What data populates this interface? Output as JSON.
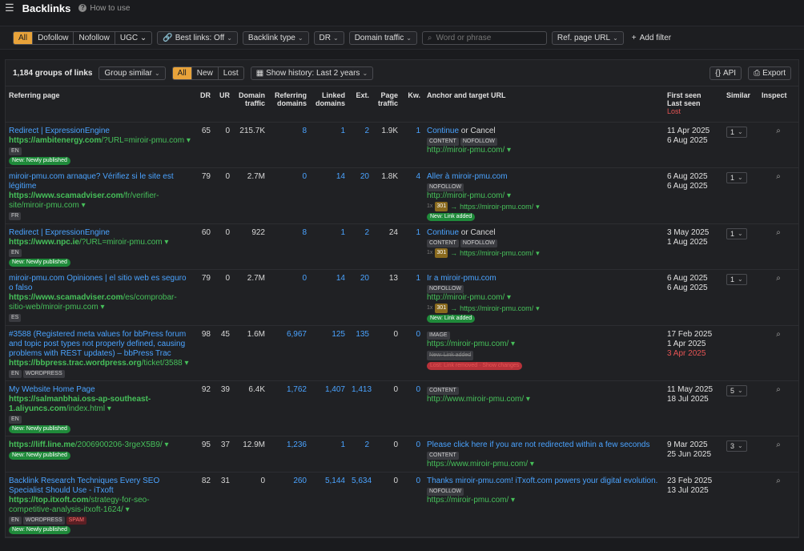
{
  "header": {
    "title": "Backlinks",
    "howto": "How to use"
  },
  "filters": {
    "seg": [
      "All",
      "Dofollow",
      "Nofollow",
      "UGC"
    ],
    "best_links": "Best links: Off",
    "backlink_type": "Backlink type",
    "dr": "DR",
    "domain_traffic": "Domain traffic",
    "search_placeholder": "Word or phrase",
    "ref_page_url": "Ref. page URL",
    "add_filter": "Add filter"
  },
  "toolbar": {
    "count": "1,184 groups of links",
    "group_similar": "Group similar",
    "tabs": [
      "All",
      "New",
      "Lost"
    ],
    "history": "Show history: Last 2 years",
    "api": "API",
    "export": "Export"
  },
  "columns": {
    "referring_page": "Referring page",
    "dr": "DR",
    "ur": "UR",
    "domain_traffic": "Domain traffic",
    "referring_domains": "Referring domains",
    "linked_domains": "Linked domains",
    "ext": "Ext.",
    "page_traffic": "Page traffic",
    "kw": "Kw.",
    "anchor": "Anchor and target URL",
    "first_seen": "First seen",
    "last_seen": "Last seen",
    "lost": "Lost",
    "similar": "Similar",
    "inspect": "Inspect"
  },
  "rows": [
    {
      "title": "Redirect | ExpressionEngine",
      "url_domain": "https://ambitenergy.com",
      "url_path": "/?URL=miroir-pmu.com",
      "tags": [
        "EN"
      ],
      "status": "New: Newly published",
      "dr": "65",
      "ur": "0",
      "dtraffic": "215.7K",
      "refdom": "8",
      "linked": "1",
      "ext": "2",
      "ptraffic": "1.9K",
      "kw": "1",
      "anchor": "Continue",
      "anchor_rest": " or Cancel",
      "anchor_tags": [
        "CONTENT",
        "NOFOLLOW"
      ],
      "target": "http://miroir-pmu.com/",
      "redirect": "",
      "link_status": "",
      "first": "11 Apr 2025",
      "last": "6 Aug 2025",
      "lost": "",
      "similar": "1"
    },
    {
      "title": "miroir-pmu.com arnaque? Vérifiez si le site est légitime",
      "url_domain": "https://www.scamadviser.com",
      "url_path": "/fr/verifier-site/miroir-pmu.com",
      "tags": [
        "FR"
      ],
      "status": "",
      "dr": "79",
      "ur": "0",
      "dtraffic": "2.7M",
      "refdom": "0",
      "linked": "14",
      "ext": "20",
      "ptraffic": "1.8K",
      "kw": "4",
      "anchor": "Aller à miroir-pmu.com",
      "anchor_rest": "",
      "anchor_tags": [
        "NOFOLLOW"
      ],
      "target": "http://miroir-pmu.com/",
      "redirect": "https://miroir-pmu.com/",
      "link_status": "New: Link added",
      "first": "6 Aug 2025",
      "last": "6 Aug 2025",
      "lost": "",
      "similar": "1"
    },
    {
      "title": "Redirect | ExpressionEngine",
      "url_domain": "https://www.npc.ie",
      "url_path": "/?URL=miroir-pmu.com",
      "tags": [
        "EN"
      ],
      "status": "New: Newly published",
      "dr": "60",
      "ur": "0",
      "dtraffic": "922",
      "refdom": "8",
      "linked": "1",
      "ext": "2",
      "ptraffic": "24",
      "kw": "1",
      "anchor": "Continue",
      "anchor_rest": " or Cancel",
      "anchor_tags": [
        "CONTENT",
        "NOFOLLOW"
      ],
      "target": "",
      "redirect": "https://miroir-pmu.com/",
      "link_status": "",
      "first": "3 May 2025",
      "last": "1 Aug 2025",
      "lost": "",
      "similar": "1"
    },
    {
      "title": "miroir-pmu.com Opiniones | el sitio web es seguro o falso",
      "url_domain": "https://www.scamadviser.com",
      "url_path": "/es/comprobar-sitio-web/miroir-pmu.com",
      "tags": [
        "ES"
      ],
      "status": "",
      "dr": "79",
      "ur": "0",
      "dtraffic": "2.7M",
      "refdom": "0",
      "linked": "14",
      "ext": "20",
      "ptraffic": "13",
      "kw": "1",
      "anchor": "Ir a miroir-pmu.com",
      "anchor_rest": "",
      "anchor_tags": [
        "NOFOLLOW"
      ],
      "target": "http://miroir-pmu.com/",
      "redirect": "https://miroir-pmu.com/",
      "link_status": "New: Link added",
      "first": "6 Aug 2025",
      "last": "6 Aug 2025",
      "lost": "",
      "similar": "1"
    },
    {
      "title": "#3588 (Registered meta values for bbPress forum and topic post types not properly defined, causing problems with REST updates) – bbPress Trac",
      "url_domain": "https://bbpress.trac.wordpress.org",
      "url_path": "/ticket/3588",
      "tags": [
        "EN",
        "WORDPRESS"
      ],
      "status": "",
      "dr": "98",
      "ur": "45",
      "dtraffic": "1.6M",
      "refdom": "6,967",
      "linked": "125",
      "ext": "135",
      "ptraffic": "0",
      "kw": "0",
      "anchor": "",
      "anchor_rest": "",
      "anchor_tags": [
        "IMAGE"
      ],
      "target": "https://miroir-pmu.com/",
      "redirect": "",
      "link_status": "",
      "strike": "New: Link added",
      "lost_status": "Lost: Link removed · Show changes",
      "first": "17 Feb 2025",
      "last": "1 Apr 2025",
      "lost": "3 Apr 2025",
      "similar": ""
    },
    {
      "title": "My Website Home Page",
      "url_domain": "https://salmanbhai.oss-ap-southeast-1.aliyuncs.com",
      "url_path": "/index.html",
      "tags": [
        "EN"
      ],
      "status": "New: Newly published",
      "dr": "92",
      "ur": "39",
      "dtraffic": "6.4K",
      "refdom": "1,762",
      "linked": "1,407",
      "ext": "1,413",
      "ptraffic": "0",
      "kw": "0",
      "anchor": "",
      "anchor_rest": "",
      "anchor_tags": [
        "CONTENT"
      ],
      "target": "http://www.miroir-pmu.com/",
      "redirect": "",
      "link_status": "",
      "first": "11 May 2025",
      "last": "18 Jul 2025",
      "lost": "",
      "similar": "5"
    },
    {
      "title": "",
      "url_domain": "https://liff.line.me",
      "url_path": "/2006900206-3rgeX5B9/",
      "tags": [],
      "status": "New: Newly published",
      "dr": "95",
      "ur": "37",
      "dtraffic": "12.9M",
      "refdom": "1,236",
      "linked": "1",
      "ext": "2",
      "ptraffic": "0",
      "kw": "0",
      "anchor": "Please click here if you are not redirected within a few seconds",
      "anchor_rest": "",
      "anchor_tags": [
        "CONTENT"
      ],
      "target": "https://www.miroir-pmu.com/",
      "redirect": "",
      "link_status": "",
      "first": "9 Mar 2025",
      "last": "25 Jun 2025",
      "lost": "",
      "similar": "3"
    },
    {
      "title": "Backlink Research Techniques Every SEO Specialist Should Use - iTxoft",
      "url_domain": "https://top.itxoft.com",
      "url_path": "/strategy-for-seo-competitive-analysis-itxoft-1624/",
      "tags": [
        "EN",
        "WORDPRESS",
        "SPAM"
      ],
      "status": "New: Newly published",
      "dr": "82",
      "ur": "31",
      "dtraffic": "0",
      "refdom": "260",
      "linked": "5,144",
      "ext": "5,634",
      "ptraffic": "0",
      "kw": "0",
      "anchor": "Thanks miroir-pmu.com! iTxoft.com powers your digital evolution.",
      "anchor_rest": "",
      "anchor_tags": [
        "NOFOLLOW"
      ],
      "target": "https://miroir-pmu.com/",
      "redirect": "",
      "link_status": "",
      "first": "23 Feb 2025",
      "last": "13 Jul 2025",
      "lost": "",
      "similar": ""
    }
  ]
}
